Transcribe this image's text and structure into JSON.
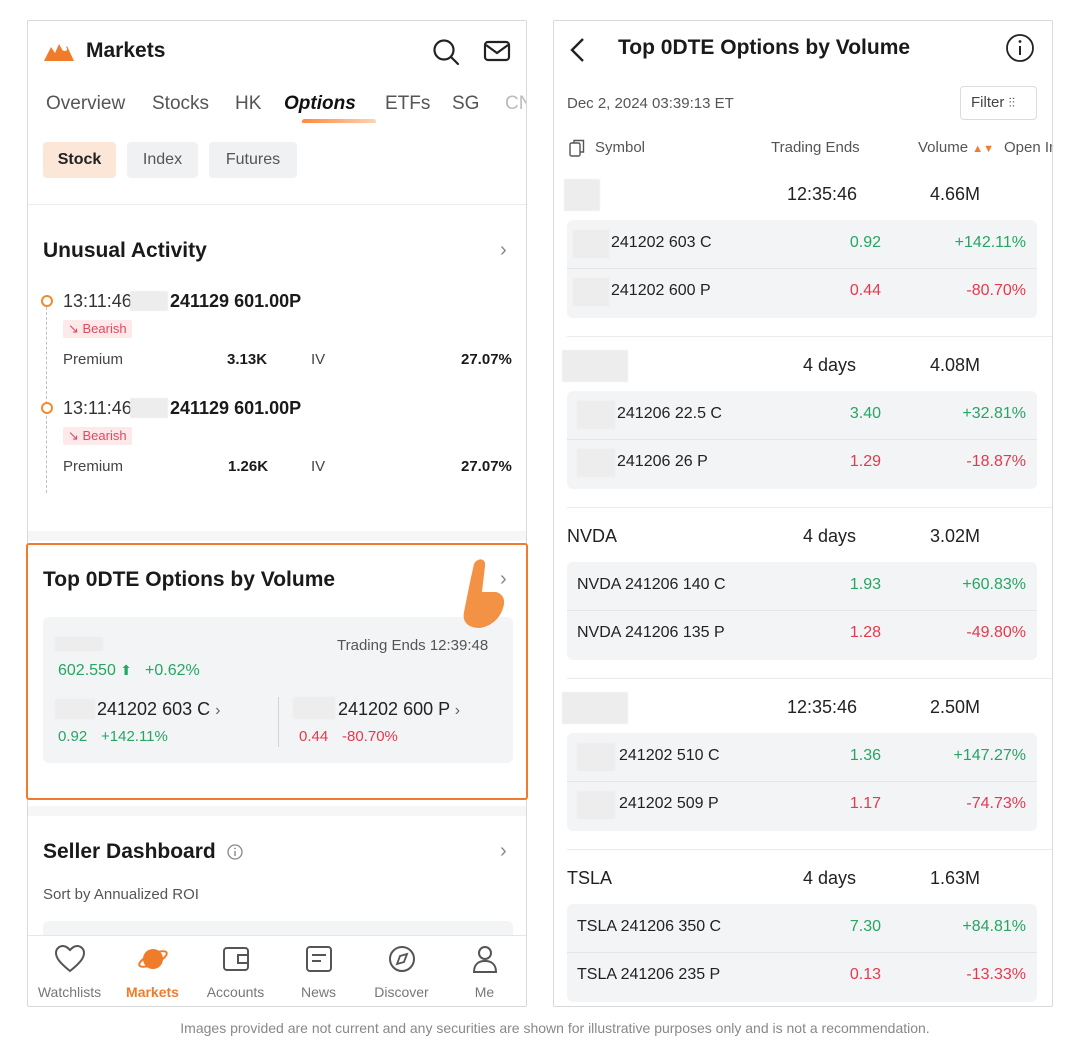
{
  "left": {
    "header": {
      "title": "Markets"
    },
    "tabs": [
      "Overview",
      "Stocks",
      "HK",
      "Options",
      "ETFs",
      "SG",
      "CN"
    ],
    "active_tab": "Options",
    "chips": [
      "Stock",
      "Index",
      "Futures"
    ],
    "unusual": {
      "title": "Unusual Activity",
      "items": [
        {
          "time": "13:11:46",
          "contract": "241129 601.00P",
          "badge": "↘ Bearish",
          "premium_label": "Premium",
          "premium": "3.13K",
          "iv_label": "IV",
          "iv": "27.07%"
        },
        {
          "time": "13:11:46",
          "contract": "241129 601.00P",
          "badge": "↘ Bearish",
          "premium_label": "Premium",
          "premium": "1.26K",
          "iv_label": "IV",
          "iv": "27.07%"
        }
      ]
    },
    "top0dte": {
      "title": "Top 0DTE Options by Volume",
      "trading_ends": "Trading Ends 12:39:48",
      "price": "602.550",
      "change": "+0.62%",
      "call_contract": "241202 603 C",
      "call_price": "0.92",
      "call_change": "+142.11%",
      "put_contract": "241202 600 P",
      "put_price": "0.44",
      "put_change": "-80.70%"
    },
    "seller": {
      "title": "Seller Dashboard",
      "sub": "Sort by Annualized ROI"
    },
    "nav": [
      "Watchlists",
      "Markets",
      "Accounts",
      "News",
      "Discover",
      "Me"
    ]
  },
  "right": {
    "title": "Top 0DTE Options by Volume",
    "date": "Dec 2, 2024 03:39:13 ET",
    "filter": "Filter",
    "columns": [
      "Symbol",
      "Trading Ends",
      "Volume",
      "Open In"
    ],
    "groups": [
      {
        "symbol": "",
        "ends": "12:35:46",
        "volume": "4.66M",
        "rows": [
          {
            "name": "241202 603 C",
            "price": "0.92",
            "change": "+142.11%",
            "up": true
          },
          {
            "name": "241202 600 P",
            "price": "0.44",
            "change": "-80.70%",
            "up": false
          }
        ]
      },
      {
        "symbol": "",
        "ends": "4 days",
        "volume": "4.08M",
        "rows": [
          {
            "name": "241206 22.5 C",
            "price": "3.40",
            "change": "+32.81%",
            "up": true
          },
          {
            "name": "241206 26 P",
            "price": "1.29",
            "change": "-18.87%",
            "up": false
          }
        ]
      },
      {
        "symbol": "NVDA",
        "ends": "4 days",
        "volume": "3.02M",
        "rows": [
          {
            "name": "NVDA 241206 140 C",
            "price": "1.93",
            "change": "+60.83%",
            "up": true
          },
          {
            "name": "NVDA 241206 135 P",
            "price": "1.28",
            "change": "-49.80%",
            "up": false
          }
        ]
      },
      {
        "symbol": "",
        "ends": "12:35:46",
        "volume": "2.50M",
        "rows": [
          {
            "name": "241202 510 C",
            "price": "1.36",
            "change": "+147.27%",
            "up": true
          },
          {
            "name": "241202 509 P",
            "price": "1.17",
            "change": "-74.73%",
            "up": false
          }
        ]
      },
      {
        "symbol": "TSLA",
        "ends": "4 days",
        "volume": "1.63M",
        "rows": [
          {
            "name": "TSLA 241206 350 C",
            "price": "7.30",
            "change": "+84.81%",
            "up": true
          },
          {
            "name": "TSLA 241206 235 P",
            "price": "0.13",
            "change": "-13.33%",
            "up": false
          }
        ]
      }
    ]
  },
  "footnote": "Images provided are not current and any securities are shown for illustrative purposes only and is not a recommendation.",
  "colors": {
    "accent": "#f07c2b",
    "up": "#26a563",
    "down": "#e5394d"
  }
}
